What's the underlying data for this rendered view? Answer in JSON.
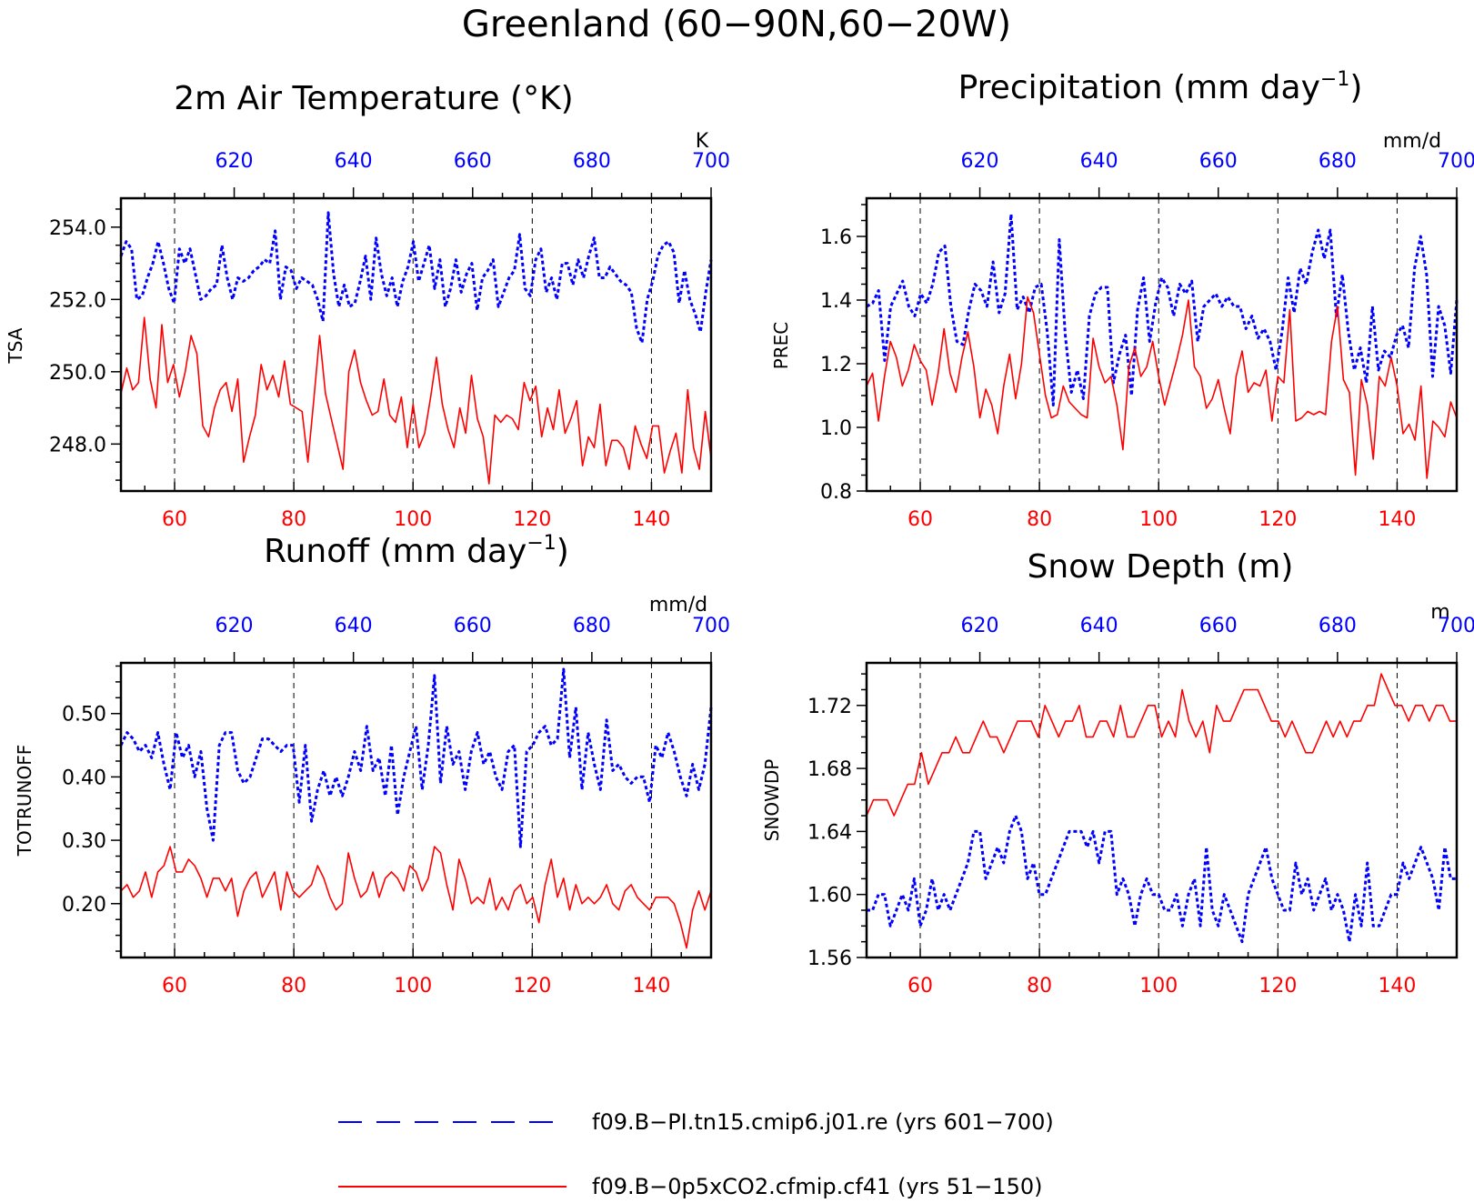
{
  "page_title": "Greenland (60−90N,60−20W)",
  "colors": {
    "blue_series": "#0000ff",
    "red_series": "#ff0000",
    "frame": "#000000"
  },
  "legend": {
    "items": [
      {
        "label": "f09.B−PI.tn15.cmip6.j01.re (yrs 601−700)",
        "color": "#0000ff",
        "style": "dashed"
      },
      {
        "label": "f09.B−0p5xCO2.cfmip.cf41 (yrs 51−150)",
        "color": "#ff0000",
        "style": "solid"
      }
    ]
  },
  "chart_data": [
    {
      "type": "line",
      "title": "2m Air Temperature (°K)",
      "unit_label": "K",
      "ylabel": "TSA",
      "ylim": [
        246.7,
        254.8
      ],
      "yticks": [
        248.0,
        250.0,
        252.0,
        254.0
      ],
      "ytick_labels": [
        "248.0",
        "250.0",
        "252.0",
        "254.0"
      ],
      "bottom_axis": {
        "range": [
          51,
          150
        ],
        "ticks": [
          60,
          80,
          100,
          120,
          140
        ],
        "color": "#ff0000"
      },
      "top_axis": {
        "range": [
          601,
          700
        ],
        "ticks": [
          620,
          640,
          660,
          680,
          700
        ],
        "color": "#0000ff"
      },
      "grid": "dashed vertical",
      "series": [
        {
          "years": "601−700",
          "color": "#0000ff",
          "style": "dashed",
          "values": [
            253.2,
            253.6,
            253.4,
            252.0,
            252.1,
            252.6,
            253.0,
            253.6,
            253.0,
            252.3,
            251.9,
            253.4,
            253.0,
            253.4,
            252.7,
            252.0,
            252.1,
            252.3,
            252.4,
            253.5,
            252.6,
            252.0,
            252.6,
            252.5,
            252.6,
            252.8,
            252.9,
            253.1,
            253.0,
            253.9,
            252.0,
            252.9,
            252.8,
            252.3,
            252.6,
            252.5,
            252.4,
            252.0,
            251.4,
            254.4,
            252.7,
            251.8,
            252.4,
            251.8,
            251.9,
            252.5,
            253.2,
            252.0,
            253.7,
            252.7,
            252.1,
            252.6,
            251.8,
            252.5,
            252.9,
            253.6,
            252.5,
            253.0,
            253.5,
            252.3,
            253.1,
            251.8,
            252.3,
            253.1,
            252.2,
            252.7,
            253.0,
            251.7,
            252.6,
            252.8,
            253.1,
            251.8,
            252.2,
            252.6,
            252.8,
            253.8,
            252.3,
            252.1,
            253.1,
            253.4,
            252.2,
            252.6,
            252.0,
            253.0,
            253.0,
            252.4,
            253.1,
            252.6,
            253.2,
            253.7,
            252.6,
            252.6,
            252.9,
            252.7,
            252.5,
            252.4,
            252.2,
            251.2,
            250.8,
            252.0,
            252.5,
            253.2,
            253.5,
            253.6,
            253.3,
            251.9,
            252.8,
            252.0,
            251.6,
            251.1,
            252.2,
            253.1
          ]
        },
        {
          "years": "51−150",
          "color": "#ff0000",
          "style": "solid",
          "values": [
            249.4,
            250.1,
            249.5,
            249.7,
            251.5,
            249.8,
            249.0,
            251.3,
            249.7,
            250.2,
            249.3,
            250.0,
            251.0,
            250.5,
            248.5,
            248.2,
            249.0,
            249.5,
            249.7,
            248.9,
            249.8,
            247.5,
            248.2,
            248.8,
            250.2,
            249.5,
            249.9,
            249.3,
            250.3,
            249.1,
            249.0,
            248.9,
            247.5,
            249.2,
            251.0,
            249.4,
            248.7,
            248.0,
            247.3,
            250.0,
            250.6,
            249.7,
            249.2,
            248.8,
            248.9,
            249.8,
            248.8,
            248.6,
            249.3,
            247.9,
            249.1,
            247.9,
            248.3,
            249.3,
            250.4,
            249.1,
            248.4,
            247.9,
            249.0,
            248.3,
            249.9,
            248.7,
            248.2,
            246.9,
            248.8,
            248.6,
            248.8,
            248.7,
            248.4,
            249.7,
            249.2,
            249.6,
            248.2,
            249.0,
            248.4,
            249.5,
            248.3,
            248.7,
            249.2,
            247.4,
            248.2,
            247.9,
            249.1,
            247.4,
            248.1,
            248.1,
            247.9,
            247.3,
            248.5,
            248.0,
            247.6,
            248.5,
            248.5,
            247.2,
            247.8,
            248.3,
            247.2,
            249.5,
            247.9,
            247.3,
            248.9,
            247.6
          ]
        }
      ]
    },
    {
      "type": "line",
      "title": "Precipitation (mm day",
      "title_sup": "−1",
      "title_end": ")",
      "unit_label": "mm/d",
      "ylabel": "PREC",
      "ylim": [
        0.8,
        1.72
      ],
      "yticks": [
        0.8,
        1.0,
        1.2,
        1.4,
        1.6
      ],
      "ytick_labels": [
        "0.8",
        "1.0",
        "1.2",
        "1.4",
        "1.6"
      ],
      "bottom_axis": {
        "range": [
          51,
          150
        ],
        "ticks": [
          60,
          80,
          100,
          120,
          140
        ],
        "color": "#ff0000"
      },
      "top_axis": {
        "range": [
          601,
          700
        ],
        "ticks": [
          620,
          640,
          660,
          680,
          700
        ],
        "color": "#0000ff"
      },
      "grid": "dashed vertical",
      "series": [
        {
          "years": "601−700",
          "color": "#0000ff",
          "style": "dashed",
          "values": [
            1.38,
            1.39,
            1.43,
            1.21,
            1.38,
            1.42,
            1.46,
            1.38,
            1.35,
            1.42,
            1.39,
            1.45,
            1.55,
            1.57,
            1.38,
            1.27,
            1.26,
            1.37,
            1.45,
            1.43,
            1.38,
            1.52,
            1.36,
            1.42,
            1.67,
            1.37,
            1.41,
            1.36,
            1.44,
            1.45,
            1.3,
            1.07,
            1.59,
            1.29,
            1.11,
            1.18,
            1.09,
            1.35,
            1.42,
            1.44,
            1.44,
            1.14,
            1.23,
            1.29,
            1.1,
            1.37,
            1.47,
            1.27,
            1.39,
            1.47,
            1.44,
            1.35,
            1.45,
            1.42,
            1.46,
            1.27,
            1.38,
            1.4,
            1.42,
            1.38,
            1.41,
            1.38,
            1.38,
            1.31,
            1.35,
            1.28,
            1.31,
            1.27,
            1.18,
            1.3,
            1.47,
            1.36,
            1.5,
            1.45,
            1.55,
            1.62,
            1.53,
            1.62,
            1.35,
            1.48,
            1.3,
            1.18,
            1.25,
            1.14,
            1.38,
            1.18,
            1.24,
            1.22,
            1.29,
            1.32,
            1.25,
            1.5,
            1.6,
            1.48,
            1.16,
            1.38,
            1.32,
            1.17,
            1.4
          ]
        },
        {
          "years": "51−150",
          "color": "#ff0000",
          "style": "solid",
          "values": [
            1.13,
            1.17,
            1.02,
            1.16,
            1.27,
            1.22,
            1.13,
            1.18,
            1.26,
            1.21,
            1.18,
            1.07,
            1.17,
            1.31,
            1.17,
            1.11,
            1.22,
            1.3,
            1.19,
            1.03,
            1.12,
            1.07,
            0.98,
            1.13,
            1.23,
            1.09,
            1.2,
            1.41,
            1.36,
            1.23,
            1.1,
            1.03,
            1.04,
            1.13,
            1.08,
            1.06,
            1.04,
            1.03,
            1.28,
            1.19,
            1.14,
            1.16,
            1.07,
            0.93,
            1.19,
            1.25,
            1.16,
            1.19,
            1.27,
            1.16,
            1.07,
            1.14,
            1.21,
            1.29,
            1.4,
            1.19,
            1.16,
            1.06,
            1.09,
            1.15,
            1.06,
            0.98,
            1.16,
            1.24,
            1.11,
            1.14,
            1.13,
            1.18,
            1.02,
            1.16,
            1.14,
            1.37,
            1.02,
            1.03,
            1.05,
            1.04,
            1.05,
            1.04,
            1.27,
            1.38,
            1.15,
            1.11,
            0.85,
            1.15,
            1.07,
            0.9,
            1.16,
            1.13,
            1.22,
            1.13,
            0.98,
            1.01,
            0.96,
            1.13,
            0.84,
            1.02,
            1.0,
            0.97,
            1.08,
            1.03
          ]
        }
      ]
    },
    {
      "type": "line",
      "title": "Runoff (mm day",
      "title_sup": "−1",
      "title_end": ")",
      "unit_label": "mm/d",
      "ylabel": "TOTRUNOFF",
      "ylim": [
        0.115,
        0.58
      ],
      "yticks": [
        0.2,
        0.3,
        0.4,
        0.5
      ],
      "ytick_labels": [
        "0.20",
        "0.30",
        "0.40",
        "0.50"
      ],
      "bottom_axis": {
        "range": [
          51,
          150
        ],
        "ticks": [
          60,
          80,
          100,
          120,
          140
        ],
        "color": "#ff0000"
      },
      "top_axis": {
        "range": [
          601,
          700
        ],
        "ticks": [
          620,
          640,
          660,
          680,
          700
        ],
        "color": "#0000ff"
      },
      "grid": "dashed vertical",
      "series": [
        {
          "years": "601−700",
          "color": "#0000ff",
          "style": "dashed",
          "values": [
            0.45,
            0.47,
            0.46,
            0.44,
            0.45,
            0.43,
            0.47,
            0.42,
            0.38,
            0.47,
            0.43,
            0.45,
            0.4,
            0.44,
            0.35,
            0.3,
            0.45,
            0.47,
            0.47,
            0.41,
            0.39,
            0.4,
            0.43,
            0.46,
            0.46,
            0.45,
            0.44,
            0.45,
            0.45,
            0.36,
            0.45,
            0.33,
            0.38,
            0.41,
            0.37,
            0.4,
            0.37,
            0.4,
            0.44,
            0.41,
            0.48,
            0.41,
            0.43,
            0.37,
            0.45,
            0.34,
            0.4,
            0.44,
            0.48,
            0.38,
            0.45,
            0.56,
            0.39,
            0.48,
            0.42,
            0.44,
            0.38,
            0.44,
            0.47,
            0.42,
            0.44,
            0.4,
            0.38,
            0.44,
            0.45,
            0.29,
            0.44,
            0.45,
            0.47,
            0.48,
            0.45,
            0.46,
            0.57,
            0.43,
            0.51,
            0.38,
            0.47,
            0.42,
            0.38,
            0.49,
            0.41,
            0.42,
            0.4,
            0.39,
            0.4,
            0.4,
            0.36,
            0.45,
            0.43,
            0.47,
            0.44,
            0.4,
            0.37,
            0.42,
            0.38,
            0.42,
            0.51
          ]
        },
        {
          "years": "51−150",
          "color": "#ff0000",
          "style": "solid",
          "values": [
            0.22,
            0.23,
            0.21,
            0.22,
            0.25,
            0.21,
            0.25,
            0.26,
            0.29,
            0.25,
            0.25,
            0.27,
            0.26,
            0.24,
            0.21,
            0.24,
            0.24,
            0.22,
            0.24,
            0.18,
            0.22,
            0.24,
            0.25,
            0.21,
            0.23,
            0.25,
            0.19,
            0.25,
            0.22,
            0.21,
            0.22,
            0.23,
            0.26,
            0.24,
            0.21,
            0.19,
            0.2,
            0.28,
            0.24,
            0.21,
            0.22,
            0.25,
            0.21,
            0.24,
            0.25,
            0.24,
            0.22,
            0.26,
            0.25,
            0.22,
            0.24,
            0.29,
            0.28,
            0.23,
            0.19,
            0.27,
            0.24,
            0.2,
            0.21,
            0.2,
            0.24,
            0.19,
            0.21,
            0.19,
            0.22,
            0.23,
            0.2,
            0.21,
            0.17,
            0.23,
            0.27,
            0.21,
            0.24,
            0.19,
            0.23,
            0.2,
            0.21,
            0.2,
            0.21,
            0.23,
            0.2,
            0.19,
            0.22,
            0.23,
            0.21,
            0.2,
            0.19,
            0.21,
            0.21,
            0.21,
            0.2,
            0.17,
            0.13,
            0.19,
            0.22,
            0.19,
            0.22
          ]
        }
      ]
    },
    {
      "type": "line",
      "title": "Snow Depth (m)",
      "unit_label": "m",
      "ylabel": "SNOWDP",
      "ylim": [
        1.56,
        1.747
      ],
      "yticks": [
        1.56,
        1.6,
        1.64,
        1.68,
        1.72
      ],
      "ytick_labels": [
        "1.56",
        "1.60",
        "1.64",
        "1.68",
        "1.72"
      ],
      "bottom_axis": {
        "range": [
          51,
          150
        ],
        "ticks": [
          60,
          80,
          100,
          120,
          140
        ],
        "color": "#ff0000"
      },
      "top_axis": {
        "range": [
          601,
          700
        ],
        "ticks": [
          620,
          640,
          660,
          680,
          700
        ],
        "color": "#0000ff"
      },
      "grid": "dashed vertical",
      "series": [
        {
          "years": "601−700",
          "color": "#0000ff",
          "style": "dashed",
          "values": [
            1.59,
            1.59,
            1.6,
            1.6,
            1.58,
            1.59,
            1.6,
            1.59,
            1.61,
            1.58,
            1.59,
            1.61,
            1.59,
            1.6,
            1.59,
            1.6,
            1.61,
            1.62,
            1.64,
            1.64,
            1.61,
            1.62,
            1.63,
            1.62,
            1.64,
            1.65,
            1.64,
            1.61,
            1.62,
            1.6,
            1.6,
            1.61,
            1.62,
            1.63,
            1.64,
            1.64,
            1.64,
            1.63,
            1.64,
            1.62,
            1.64,
            1.64,
            1.6,
            1.61,
            1.6,
            1.58,
            1.6,
            1.61,
            1.6,
            1.6,
            1.59,
            1.59,
            1.6,
            1.58,
            1.6,
            1.61,
            1.58,
            1.63,
            1.59,
            1.58,
            1.6,
            1.59,
            1.58,
            1.57,
            1.6,
            1.61,
            1.62,
            1.63,
            1.61,
            1.6,
            1.59,
            1.59,
            1.62,
            1.6,
            1.61,
            1.59,
            1.6,
            1.61,
            1.59,
            1.6,
            1.59,
            1.57,
            1.6,
            1.58,
            1.62,
            1.58,
            1.58,
            1.59,
            1.6,
            1.6,
            1.62,
            1.61,
            1.62,
            1.63,
            1.62,
            1.61,
            1.59,
            1.63,
            1.61,
            1.61
          ]
        },
        {
          "years": "51−150",
          "color": "#ff0000",
          "style": "solid",
          "values": [
            1.65,
            1.66,
            1.66,
            1.66,
            1.65,
            1.66,
            1.67,
            1.67,
            1.69,
            1.67,
            1.68,
            1.69,
            1.69,
            1.7,
            1.69,
            1.69,
            1.7,
            1.71,
            1.7,
            1.7,
            1.69,
            1.7,
            1.71,
            1.71,
            1.71,
            1.7,
            1.72,
            1.71,
            1.7,
            1.71,
            1.71,
            1.72,
            1.7,
            1.7,
            1.71,
            1.71,
            1.7,
            1.72,
            1.7,
            1.7,
            1.71,
            1.72,
            1.72,
            1.7,
            1.71,
            1.7,
            1.73,
            1.71,
            1.7,
            1.71,
            1.69,
            1.72,
            1.71,
            1.71,
            1.72,
            1.73,
            1.73,
            1.73,
            1.72,
            1.71,
            1.71,
            1.7,
            1.71,
            1.7,
            1.69,
            1.69,
            1.7,
            1.71,
            1.7,
            1.71,
            1.7,
            1.71,
            1.71,
            1.72,
            1.72,
            1.74,
            1.73,
            1.72,
            1.72,
            1.71,
            1.72,
            1.72,
            1.71,
            1.72,
            1.72,
            1.71,
            1.71
          ]
        }
      ]
    }
  ]
}
